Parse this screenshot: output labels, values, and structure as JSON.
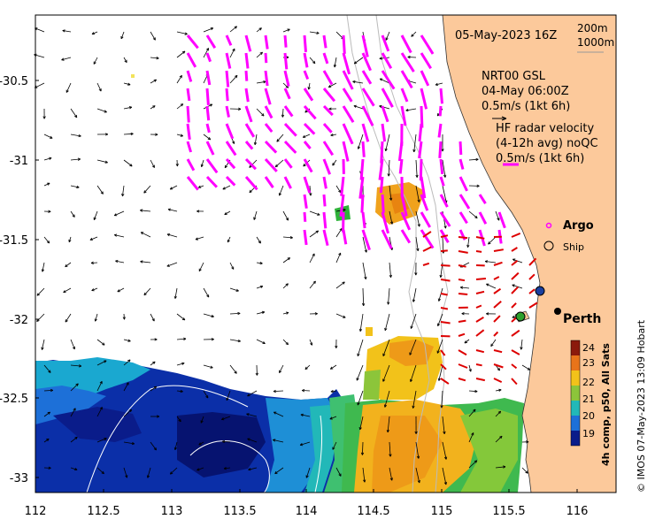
{
  "map": {
    "title": "05-May-2023 16Z",
    "contours": [
      "200m",
      "1000m"
    ],
    "model_lines": [
      "NRT00 GSL",
      "04-May 06:00Z",
      "0.5m/s (1kt 6h)"
    ],
    "radar_lines": [
      "HF radar velocity",
      "(4-12h avg) noQC",
      "0.5m/s (1kt 6h)"
    ],
    "legend_argo": "Argo",
    "legend_ship": "Ship",
    "place_label": "Perth",
    "colorbar_label": "4h comp, p50, All Sats",
    "colorbar_ticks": [
      "24",
      "23",
      "22",
      "21",
      "20",
      "19"
    ],
    "copyright": "© IMOS 07-May-2023 13:09 Hobart",
    "x_ticks": [
      "112",
      "112.5",
      "113",
      "113.5",
      "114",
      "114.5",
      "115",
      "115.5",
      "116"
    ],
    "y_ticks": [
      "-30.5",
      "-31",
      "-31.5",
      "-32",
      "-32.5",
      "-33"
    ],
    "colors": {
      "land": "#fcc99b",
      "radar_north": "#ff00ff",
      "radar_south": "#dd0000",
      "model_arrows": "#000000",
      "argo": "#ff00ff"
    }
  }
}
